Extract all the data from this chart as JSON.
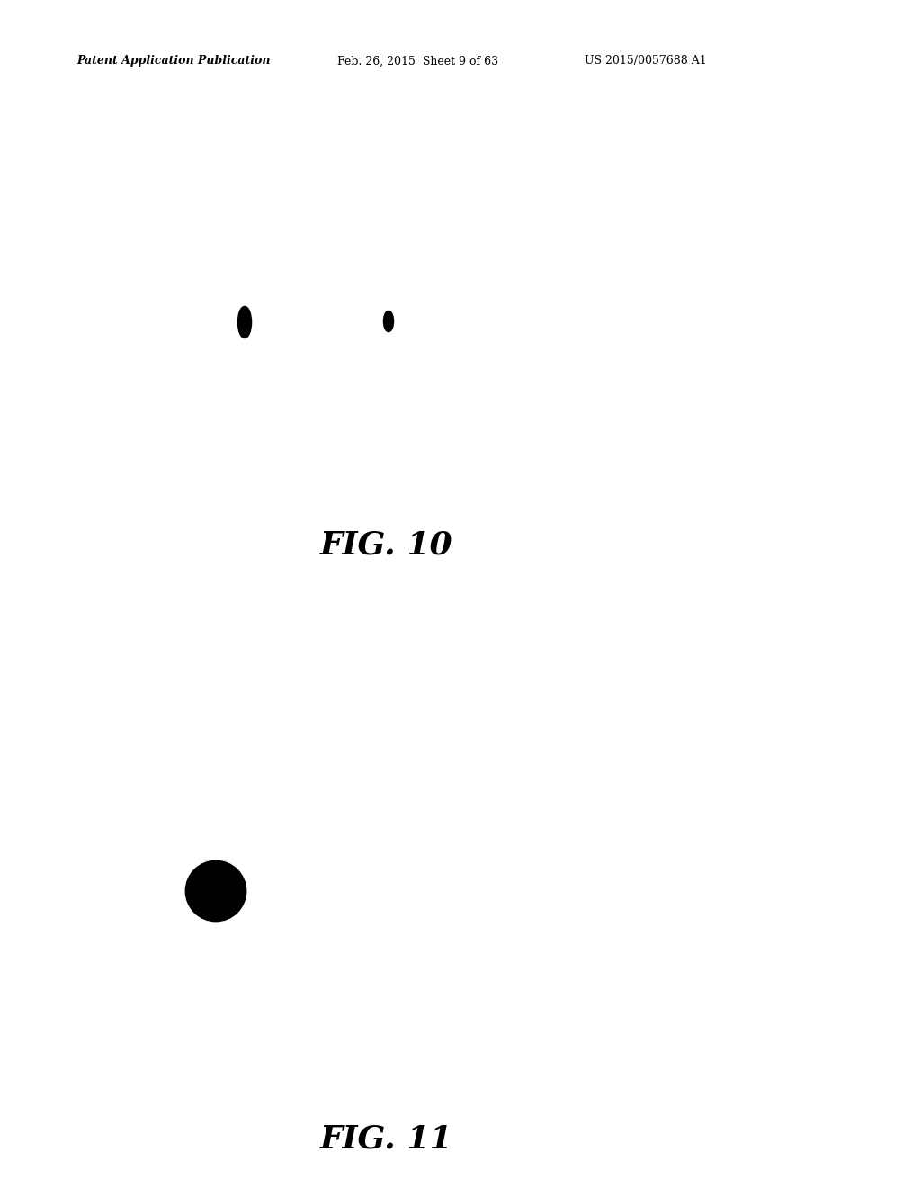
{
  "header_left": "Patent Application Publication",
  "header_mid": "Feb. 26, 2015  Sheet 9 of 63",
  "header_right": "US 2015/0057688 A1",
  "fig10_label": "FIG. 10",
  "fig11_label": "FIG. 11",
  "background_color": "#ffffff",
  "line_color": "#000000"
}
